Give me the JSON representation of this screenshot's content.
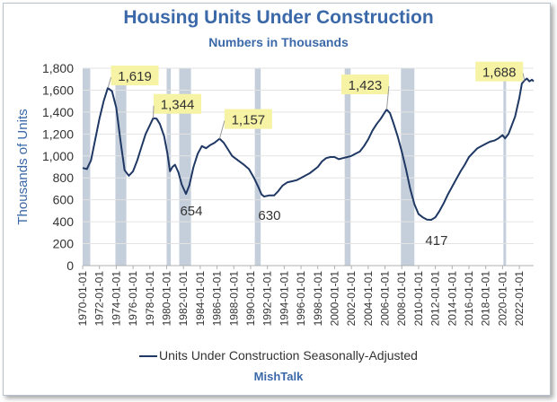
{
  "header": {
    "title": "Housing Units Under Construction",
    "subtitle": "Numbers in Thousands"
  },
  "legend": {
    "label": "Units Under Construction Seasonally-Adjusted"
  },
  "branding": {
    "name": "MishTalk"
  },
  "colors": {
    "line": "#1f3864",
    "recession": "#c5cedb",
    "highlight": "#f6f3a5",
    "title": "#3a68a8"
  },
  "chart_data": {
    "type": "line",
    "title": "Housing Units Under Construction",
    "subtitle": "Numbers in Thousands",
    "ylabel": "Thousands of Units",
    "xlabel": "",
    "ylim": [
      0,
      1800
    ],
    "xlim": [
      1970.0,
      2023.7
    ],
    "yticks": [
      "0",
      "200",
      "400",
      "600",
      "800",
      "1,000",
      "1,200",
      "1,400",
      "1,600",
      "1,800"
    ],
    "ytick_values": [
      0,
      200,
      400,
      600,
      800,
      1000,
      1200,
      1400,
      1600,
      1800
    ],
    "xticks": [
      "1970-01-01",
      "1972-01-01",
      "1974-01-01",
      "1976-01-01",
      "1978-01-01",
      "1980-01-01",
      "1982-01-01",
      "1984-01-01",
      "1986-01-01",
      "1988-01-01",
      "1990-01-01",
      "1992-01-01",
      "1994-01-01",
      "1996-01-01",
      "1998-01-01",
      "2000-01-01",
      "2002-01-01",
      "2004-01-01",
      "2006-01-01",
      "2008-01-01",
      "2010-01-01",
      "2012-01-01",
      "2014-01-01",
      "2016-01-01",
      "2018-01-01",
      "2020-01-01",
      "2022-01-01"
    ],
    "grid": "horizontal",
    "legend_position": "bottom",
    "recessions": [
      [
        1970.0,
        1970.9
      ],
      [
        1973.9,
        1975.2
      ],
      [
        1980.0,
        1980.5
      ],
      [
        1981.5,
        1982.9
      ],
      [
        1990.5,
        1991.2
      ],
      [
        2001.2,
        2001.9
      ],
      [
        2007.9,
        2009.5
      ],
      [
        2020.1,
        2020.35
      ]
    ],
    "annotations": [
      {
        "label": "1,619",
        "x": 1973.0,
        "y": 1619,
        "highlight": true
      },
      {
        "label": "1,344",
        "x": 1978.4,
        "y": 1344,
        "highlight": true
      },
      {
        "label": "654",
        "x": 1982.3,
        "y": 654,
        "highlight": false
      },
      {
        "label": "1,157",
        "x": 1986.3,
        "y": 1157,
        "highlight": true
      },
      {
        "label": "630",
        "x": 1991.6,
        "y": 630,
        "highlight": false
      },
      {
        "label": "1,423",
        "x": 2006.2,
        "y": 1423,
        "highlight": true
      },
      {
        "label": "417",
        "x": 2011.5,
        "y": 417,
        "highlight": false
      },
      {
        "label": "1,688",
        "x": 2022.6,
        "y": 1688,
        "highlight": true
      }
    ],
    "series": [
      {
        "name": "Units Under Construction Seasonally-Adjusted",
        "points": [
          [
            1970.0,
            890
          ],
          [
            1970.5,
            880
          ],
          [
            1971.0,
            960
          ],
          [
            1971.5,
            1150
          ],
          [
            1972.0,
            1340
          ],
          [
            1972.5,
            1500
          ],
          [
            1973.0,
            1619
          ],
          [
            1973.5,
            1590
          ],
          [
            1974.0,
            1440
          ],
          [
            1974.5,
            1140
          ],
          [
            1975.0,
            870
          ],
          [
            1975.5,
            820
          ],
          [
            1976.0,
            860
          ],
          [
            1976.5,
            960
          ],
          [
            1977.0,
            1080
          ],
          [
            1977.5,
            1200
          ],
          [
            1978.0,
            1280
          ],
          [
            1978.4,
            1344
          ],
          [
            1978.8,
            1340
          ],
          [
            1979.2,
            1290
          ],
          [
            1979.7,
            1180
          ],
          [
            1980.1,
            1020
          ],
          [
            1980.4,
            860
          ],
          [
            1980.7,
            900
          ],
          [
            1981.0,
            920
          ],
          [
            1981.4,
            850
          ],
          [
            1981.8,
            740
          ],
          [
            1982.3,
            654
          ],
          [
            1982.7,
            730
          ],
          [
            1983.2,
            900
          ],
          [
            1983.7,
            1020
          ],
          [
            1984.2,
            1090
          ],
          [
            1984.7,
            1070
          ],
          [
            1985.2,
            1100
          ],
          [
            1985.7,
            1120
          ],
          [
            1986.3,
            1157
          ],
          [
            1986.8,
            1120
          ],
          [
            1987.3,
            1060
          ],
          [
            1987.8,
            1000
          ],
          [
            1988.5,
            960
          ],
          [
            1989.2,
            920
          ],
          [
            1989.8,
            880
          ],
          [
            1990.4,
            800
          ],
          [
            1990.9,
            720
          ],
          [
            1991.3,
            650
          ],
          [
            1991.6,
            630
          ],
          [
            1992.2,
            640
          ],
          [
            1992.8,
            640
          ],
          [
            1993.3,
            680
          ],
          [
            1993.8,
            730
          ],
          [
            1994.4,
            760
          ],
          [
            1995.0,
            770
          ],
          [
            1995.5,
            780
          ],
          [
            1996.0,
            800
          ],
          [
            1996.5,
            820
          ],
          [
            1997.0,
            840
          ],
          [
            1997.5,
            870
          ],
          [
            1998.0,
            900
          ],
          [
            1998.5,
            950
          ],
          [
            1999.0,
            980
          ],
          [
            1999.5,
            990
          ],
          [
            2000.0,
            990
          ],
          [
            2000.5,
            970
          ],
          [
            2001.0,
            980
          ],
          [
            2001.5,
            990
          ],
          [
            2002.0,
            1000
          ],
          [
            2002.5,
            1020
          ],
          [
            2003.0,
            1040
          ],
          [
            2003.5,
            1090
          ],
          [
            2004.0,
            1150
          ],
          [
            2004.5,
            1230
          ],
          [
            2005.0,
            1290
          ],
          [
            2005.5,
            1340
          ],
          [
            2006.0,
            1400
          ],
          [
            2006.2,
            1423
          ],
          [
            2006.6,
            1390
          ],
          [
            2007.0,
            1300
          ],
          [
            2007.5,
            1180
          ],
          [
            2008.0,
            1040
          ],
          [
            2008.5,
            880
          ],
          [
            2009.0,
            700
          ],
          [
            2009.5,
            560
          ],
          [
            2010.0,
            470
          ],
          [
            2010.5,
            440
          ],
          [
            2011.0,
            420
          ],
          [
            2011.5,
            417
          ],
          [
            2012.0,
            440
          ],
          [
            2012.5,
            500
          ],
          [
            2013.0,
            570
          ],
          [
            2013.5,
            650
          ],
          [
            2014.0,
            720
          ],
          [
            2014.5,
            790
          ],
          [
            2015.0,
            860
          ],
          [
            2015.5,
            920
          ],
          [
            2016.0,
            990
          ],
          [
            2016.5,
            1030
          ],
          [
            2017.0,
            1070
          ],
          [
            2017.5,
            1090
          ],
          [
            2018.0,
            1110
          ],
          [
            2018.5,
            1130
          ],
          [
            2019.0,
            1140
          ],
          [
            2019.5,
            1160
          ],
          [
            2020.0,
            1190
          ],
          [
            2020.3,
            1160
          ],
          [
            2020.7,
            1200
          ],
          [
            2021.0,
            1260
          ],
          [
            2021.5,
            1360
          ],
          [
            2022.0,
            1530
          ],
          [
            2022.3,
            1660
          ],
          [
            2022.6,
            1688
          ],
          [
            2022.9,
            1705
          ],
          [
            2023.2,
            1680
          ],
          [
            2023.5,
            1695
          ],
          [
            2023.7,
            1680
          ]
        ]
      }
    ]
  }
}
